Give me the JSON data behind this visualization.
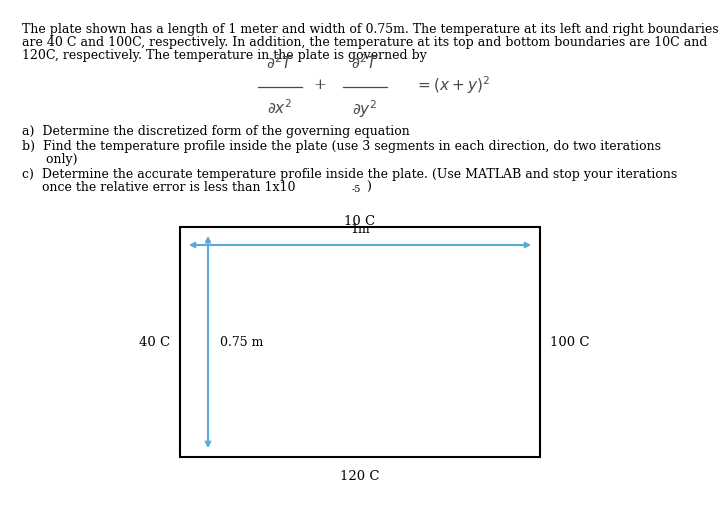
{
  "background_color": "#ffffff",
  "intro_line1": "The plate shown has a length of 1 meter and width of 0.75m. The temperature at its left and right boundaries",
  "intro_line2": "are 40 C and 100C, respectively. In addition, the temperature at its top and bottom boundaries are 10C and",
  "intro_line3": "120C, respectively. The temperature in the plate is governed by",
  "item_a": "a)  Determine the discretized form of the governing equation",
  "item_b_1": "b)  Find the temperature profile inside the plate (use 3 segments in each direction, do two iterations",
  "item_b_2": "      only)",
  "item_c_1": "c)  Determine the accurate temperature profile inside the plate. (Use MATLAB and stop your iterations",
  "item_c_2": "     once the relative error is less than 1x10",
  "item_c_2_sup": "-5",
  "item_c_2_end": ")",
  "top_label": "10 C",
  "bottom_label": "120 C",
  "left_label": "40 C",
  "right_label": "100 C",
  "horiz_arrow_label": "1m",
  "vert_arrow_label": "0.75 m",
  "arrow_color": "#5aabdb",
  "box_color": "#000000",
  "font_size_body": 9.0,
  "font_size_eq": 11.0
}
